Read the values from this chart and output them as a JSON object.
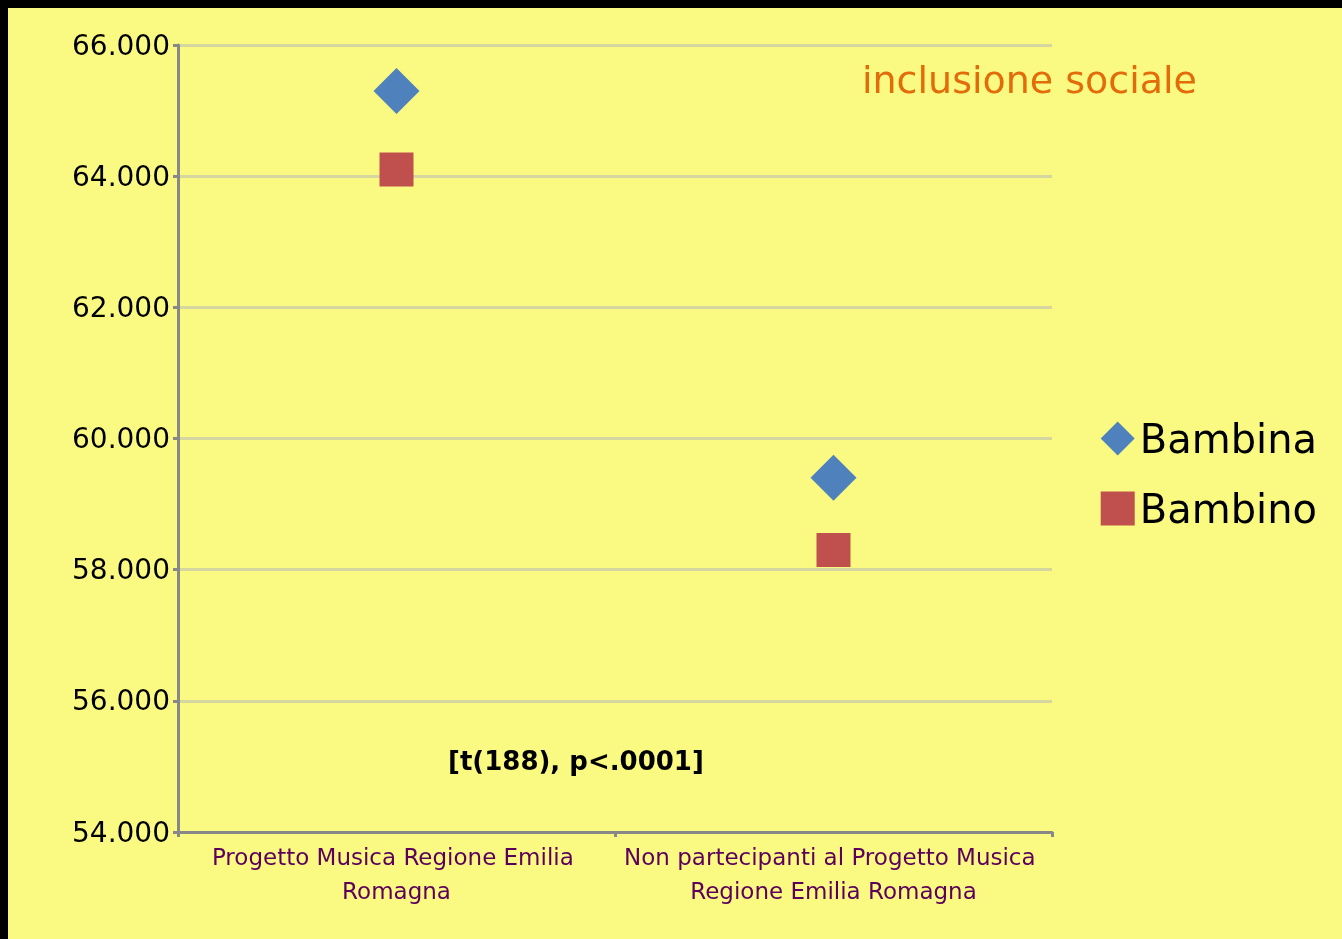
{
  "chart_data": {
    "type": "scatter",
    "title": "inclusione sociale",
    "categories": [
      "Progetto Musica Regione Emilia Romagna",
      "Non partecipanti al Progetto Musica Regione Emilia Romagna"
    ],
    "series": [
      {
        "name": "Bambina",
        "color": "#4f81bd",
        "marker": "diamond",
        "values": [
          65.3,
          59.4
        ]
      },
      {
        "name": "Bambino",
        "color": "#c0504d",
        "marker": "square",
        "values": [
          64.1,
          58.3
        ]
      }
    ],
    "ylim": [
      54,
      66
    ],
    "yticks": [
      {
        "value": 54,
        "label": "54.000"
      },
      {
        "value": 56,
        "label": "56.000"
      },
      {
        "value": 58,
        "label": "58.000"
      },
      {
        "value": 60,
        "label": "60.000"
      },
      {
        "value": 62,
        "label": "62.000"
      },
      {
        "value": 64,
        "label": "64.000"
      },
      {
        "value": 66,
        "label": "66.000"
      }
    ],
    "grid": "y",
    "legend": "right",
    "annotations": [
      "[t(188), p<.0001]"
    ]
  }
}
